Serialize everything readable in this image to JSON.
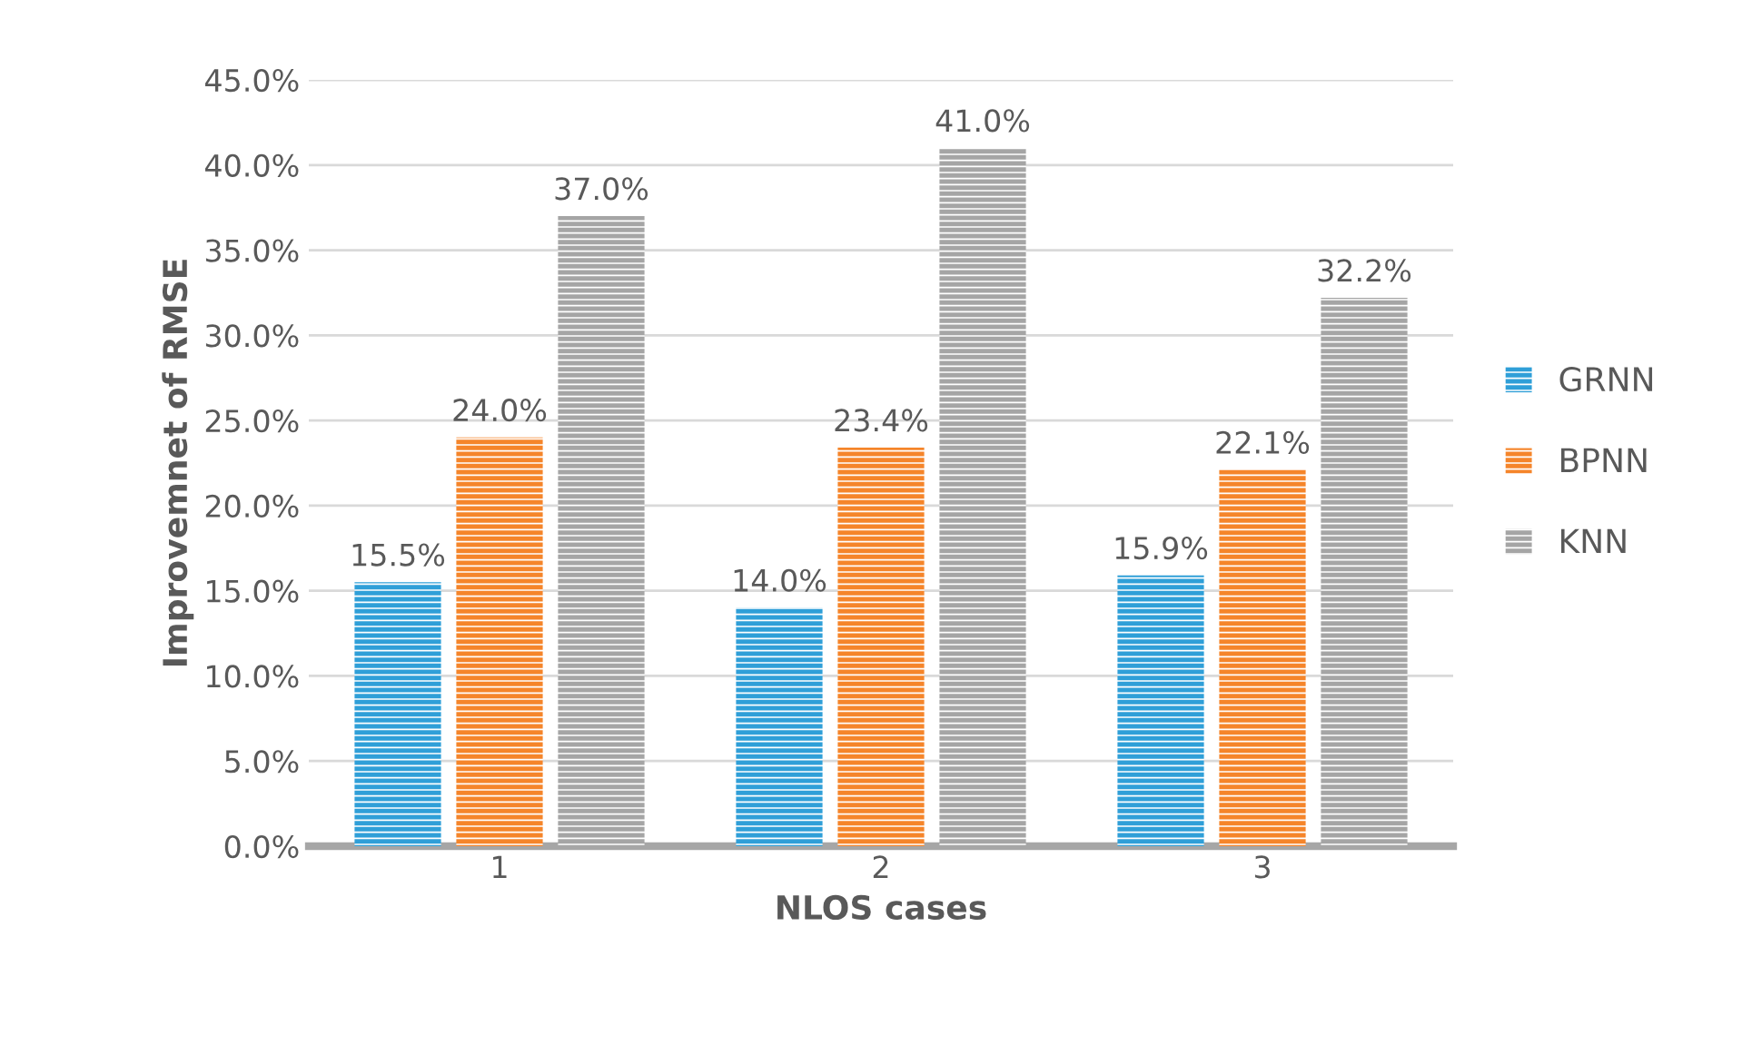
{
  "chart_data": {
    "type": "bar",
    "xlabel": "NLOS cases",
    "ylabel": "Improvemnet of RMSE",
    "categories": [
      "1",
      "2",
      "3"
    ],
    "series": [
      {
        "name": "GRNN",
        "color": "#2f9fd8",
        "values": [
          15.5,
          14.0,
          15.9
        ],
        "value_labels": [
          "15.5%",
          "14.0%",
          "15.9%"
        ]
      },
      {
        "name": "BPNN",
        "color": "#f5852a",
        "values": [
          24.0,
          23.4,
          22.1
        ],
        "value_labels": [
          "24.0%",
          "23.4%",
          "22.1%"
        ]
      },
      {
        "name": "KNN",
        "color": "#a5a5a5",
        "values": [
          37.0,
          41.0,
          32.2
        ],
        "value_labels": [
          "37.0%",
          "41.0%",
          "32.2%"
        ]
      }
    ],
    "ylim": [
      0,
      45
    ],
    "yticks": [
      {
        "value": 0,
        "label": "0.0%"
      },
      {
        "value": 5,
        "label": "5.0%"
      },
      {
        "value": 10,
        "label": "10.0%"
      },
      {
        "value": 15,
        "label": "15.0%"
      },
      {
        "value": 20,
        "label": "20.0%"
      },
      {
        "value": 25,
        "label": "25.0%"
      },
      {
        "value": 30,
        "label": "30.0%"
      },
      {
        "value": 35,
        "label": "35.0%"
      },
      {
        "value": 40,
        "label": "40.0%"
      },
      {
        "value": 45,
        "label": "45.0%"
      }
    ],
    "grid": "y",
    "legend": "right"
  }
}
